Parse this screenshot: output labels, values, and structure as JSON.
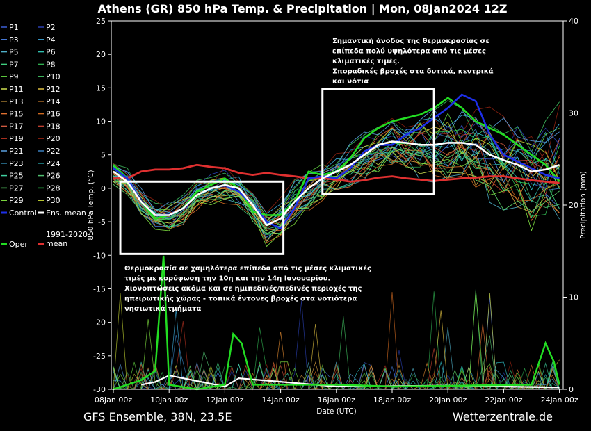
{
  "chart_data": {
    "type": "line",
    "title": "Athens  (GR)  850 hPa Temp. & Precipitation | Mon, 08Jan2024 12Z",
    "xlabel": "Date (UTC)",
    "ylabel_left": "850 hPa Temp. (°C)",
    "ylabel_right": "Precipitation (mm)",
    "ylim_left": [
      -30,
      25
    ],
    "ylim_right": [
      0,
      40
    ],
    "yticks_left": [
      25,
      20,
      15,
      10,
      5,
      0,
      -5,
      -10,
      -15,
      -20,
      -25,
      -30
    ],
    "yticks_right": [
      40,
      30,
      20,
      10,
      0
    ],
    "x_ticks": [
      "08Jan 00z",
      "10Jan 00z",
      "12Jan 00z",
      "14Jan 00z",
      "16Jan 00z",
      "18Jan 00z",
      "20Jan 00z",
      "22Jan 00z",
      "24Jan 00z"
    ],
    "x_days": [
      0,
      2,
      4,
      6,
      8,
      10,
      12,
      14,
      16
    ],
    "grid": false,
    "legend_placement": "left",
    "legend": [
      [
        "P1",
        "P2"
      ],
      [
        "P3",
        "P4"
      ],
      [
        "P5",
        "P6"
      ],
      [
        "P7",
        "P8"
      ],
      [
        "P9",
        "P10"
      ],
      [
        "P11",
        "P12"
      ],
      [
        "P13",
        "P14"
      ],
      [
        "P15",
        "P16"
      ],
      [
        "P17",
        "P18"
      ],
      [
        "P19",
        "P20"
      ],
      [
        "P21",
        "P22"
      ],
      [
        "P23",
        "P24"
      ],
      [
        "P25",
        "P26"
      ],
      [
        "P27",
        "P28"
      ],
      [
        "P29",
        "P30"
      ],
      [
        "Control",
        "Ens. mean"
      ],
      [
        "Oper",
        "1991-2020 mean"
      ]
    ],
    "member_colors": [
      "#3c5fd6",
      "#2a3fb0",
      "#4a7fe0",
      "#3a9fd0",
      "#4fb0c8",
      "#30c0b0",
      "#3fd080",
      "#30b050",
      "#60d040",
      "#40c060",
      "#d0e050",
      "#e0c040",
      "#d8a040",
      "#e08a30",
      "#e07030",
      "#d06a20",
      "#d05a40",
      "#c04030",
      "#b03020",
      "#8a2010",
      "#5aa0e0",
      "#3a80c0",
      "#40b0e0",
      "#30c8d0",
      "#40d0a0",
      "#50c070",
      "#60e070",
      "#30d050",
      "#80e040",
      "#c0d030"
    ],
    "series": [
      {
        "name": "Ens. mean",
        "color": "#ffffff",
        "x": [
          0,
          0.5,
          1,
          1.5,
          2,
          2.5,
          3,
          3.5,
          4,
          4.5,
          5,
          5.5,
          6,
          6.5,
          7,
          7.5,
          8,
          8.5,
          9,
          9.5,
          10,
          10.5,
          11,
          11.5,
          12,
          12.5,
          13,
          13.5,
          14,
          14.5,
          15,
          15.5,
          16
        ],
        "y": [
          2.5,
          1,
          -2,
          -4,
          -4,
          -3,
          -1,
          0,
          0.5,
          0,
          -2.5,
          -5.5,
          -4.5,
          -2,
          0,
          1.5,
          2.5,
          3.5,
          5,
          6.5,
          7,
          6.8,
          6.5,
          6.5,
          6.8,
          6.8,
          6.5,
          5,
          4.2,
          3.5,
          2.5,
          2.8,
          3.5
        ]
      },
      {
        "name": "Control",
        "color": "#1d2fe8",
        "x": [
          0,
          0.5,
          1,
          1.5,
          2,
          2.5,
          3,
          3.5,
          4,
          4.5,
          5,
          5.5,
          6,
          6.5,
          7,
          7.5,
          8,
          8.5,
          9,
          9.5,
          10,
          10.5,
          11,
          11.5,
          12,
          12.5,
          13,
          13.5,
          14,
          14.5,
          15,
          15.5,
          16
        ],
        "y": [
          3,
          1.5,
          -2,
          -4,
          -4,
          -3,
          -1,
          0,
          0.5,
          -0.5,
          -2.5,
          -5,
          -6,
          -3,
          1.5,
          1.8,
          1.5,
          3,
          5.5,
          6.5,
          6.5,
          8,
          9,
          10.5,
          12,
          14,
          13,
          8,
          5,
          4,
          3,
          2,
          1.5
        ]
      },
      {
        "name": "Oper",
        "color": "#22dd22",
        "x": [
          0,
          0.5,
          1,
          1.5,
          2,
          2.5,
          3,
          3.5,
          4,
          4.5,
          5,
          5.5,
          6,
          6.5,
          7,
          7.5,
          8,
          8.5,
          9,
          9.5,
          10,
          10.5,
          11,
          11.5,
          12,
          12.5,
          13,
          13.5,
          14,
          14.5,
          15,
          15.5,
          16
        ],
        "y": [
          3.5,
          1.5,
          -2,
          -4.5,
          -4,
          -3,
          -0.5,
          0.5,
          1.5,
          0,
          -3.5,
          -4,
          -4,
          -2,
          2.5,
          2,
          2.5,
          4.5,
          7.5,
          9,
          10,
          10.5,
          11,
          12,
          13.5,
          12,
          10,
          9,
          8,
          6.5,
          5,
          3.5,
          1
        ]
      },
      {
        "name": "1991-2020 mean",
        "color": "#e03030",
        "x": [
          0,
          0.5,
          1,
          1.5,
          2,
          2.5,
          3,
          3.5,
          4,
          4.5,
          5,
          5.5,
          6,
          6.5,
          7,
          7.5,
          8,
          8.5,
          9,
          9.5,
          10,
          10.5,
          11,
          11.5,
          12,
          12.5,
          13,
          13.5,
          14,
          14.5,
          15,
          15.5,
          16
        ],
        "y": [
          1.5,
          1.5,
          2.5,
          2.8,
          2.8,
          3,
          3.5,
          3.2,
          3,
          2.3,
          2.0,
          2.3,
          2.0,
          1.8,
          1.5,
          1.5,
          1.3,
          1.0,
          1.2,
          1.6,
          1.8,
          1.5,
          1.3,
          1.1,
          1.3,
          1.5,
          1.6,
          1.8,
          1.8,
          1.5,
          1.2,
          1.0,
          0.8
        ]
      }
    ],
    "precip_ens_mean_mm": {
      "x": [
        1,
        1.5,
        2,
        4,
        4.5,
        8,
        12,
        14,
        16
      ],
      "y": [
        0.5,
        0.8,
        1.5,
        0.3,
        1.2,
        0.3,
        0.4,
        0.3,
        0.2
      ]
    },
    "precip_oper_mm": {
      "x": [
        0,
        0.5,
        1,
        1.5,
        1.8,
        2,
        3,
        4,
        4.3,
        4.6,
        5,
        8,
        10,
        15,
        15.5,
        15.8,
        16
      ],
      "y": [
        0,
        0.5,
        1,
        2,
        14.5,
        0.5,
        0,
        0.5,
        6,
        5,
        0.5,
        0.5,
        0.3,
        0.5,
        5,
        3,
        0.5
      ]
    },
    "boxes": [
      {
        "x_from": 0.25,
        "x_to": 6.1,
        "y_from": -9.8,
        "y_to": 1.0
      },
      {
        "x_from": 7.5,
        "x_to": 11.5,
        "y_from": -0.8,
        "y_to": 14.8
      }
    ],
    "annotations": [
      {
        "lines": [
          "Σημαντική άνοδος της θερμοκρασίας σε",
          "επίπεδα πολύ υψηλότερα από τις μέσες",
          "κλιματικές τιμές.",
          "Σποραδικές βροχές στα δυτικά, κεντρικά",
          "και νότια"
        ]
      },
      {
        "lines": [
          "Θερμοκρασία σε χαμηλότερα επίπεδα από τις μέσες κλιματικές",
          "τιμές με κορύφωση την 10η και την 14η Ιανουαρίου.",
          "Χιονοπτώσεις ακόμα και σε ημιπεδινές/πεδινές περιοχές της",
          "ηπειρωτικής χώρας - τοπικά έντονες βροχές στα νοτιότερα",
          "νησιωτικά τμήματα"
        ]
      }
    ],
    "footer_left": "GFS Ensemble, 38N, 23.5E",
    "footer_right": "Wetterzentrale.de"
  }
}
